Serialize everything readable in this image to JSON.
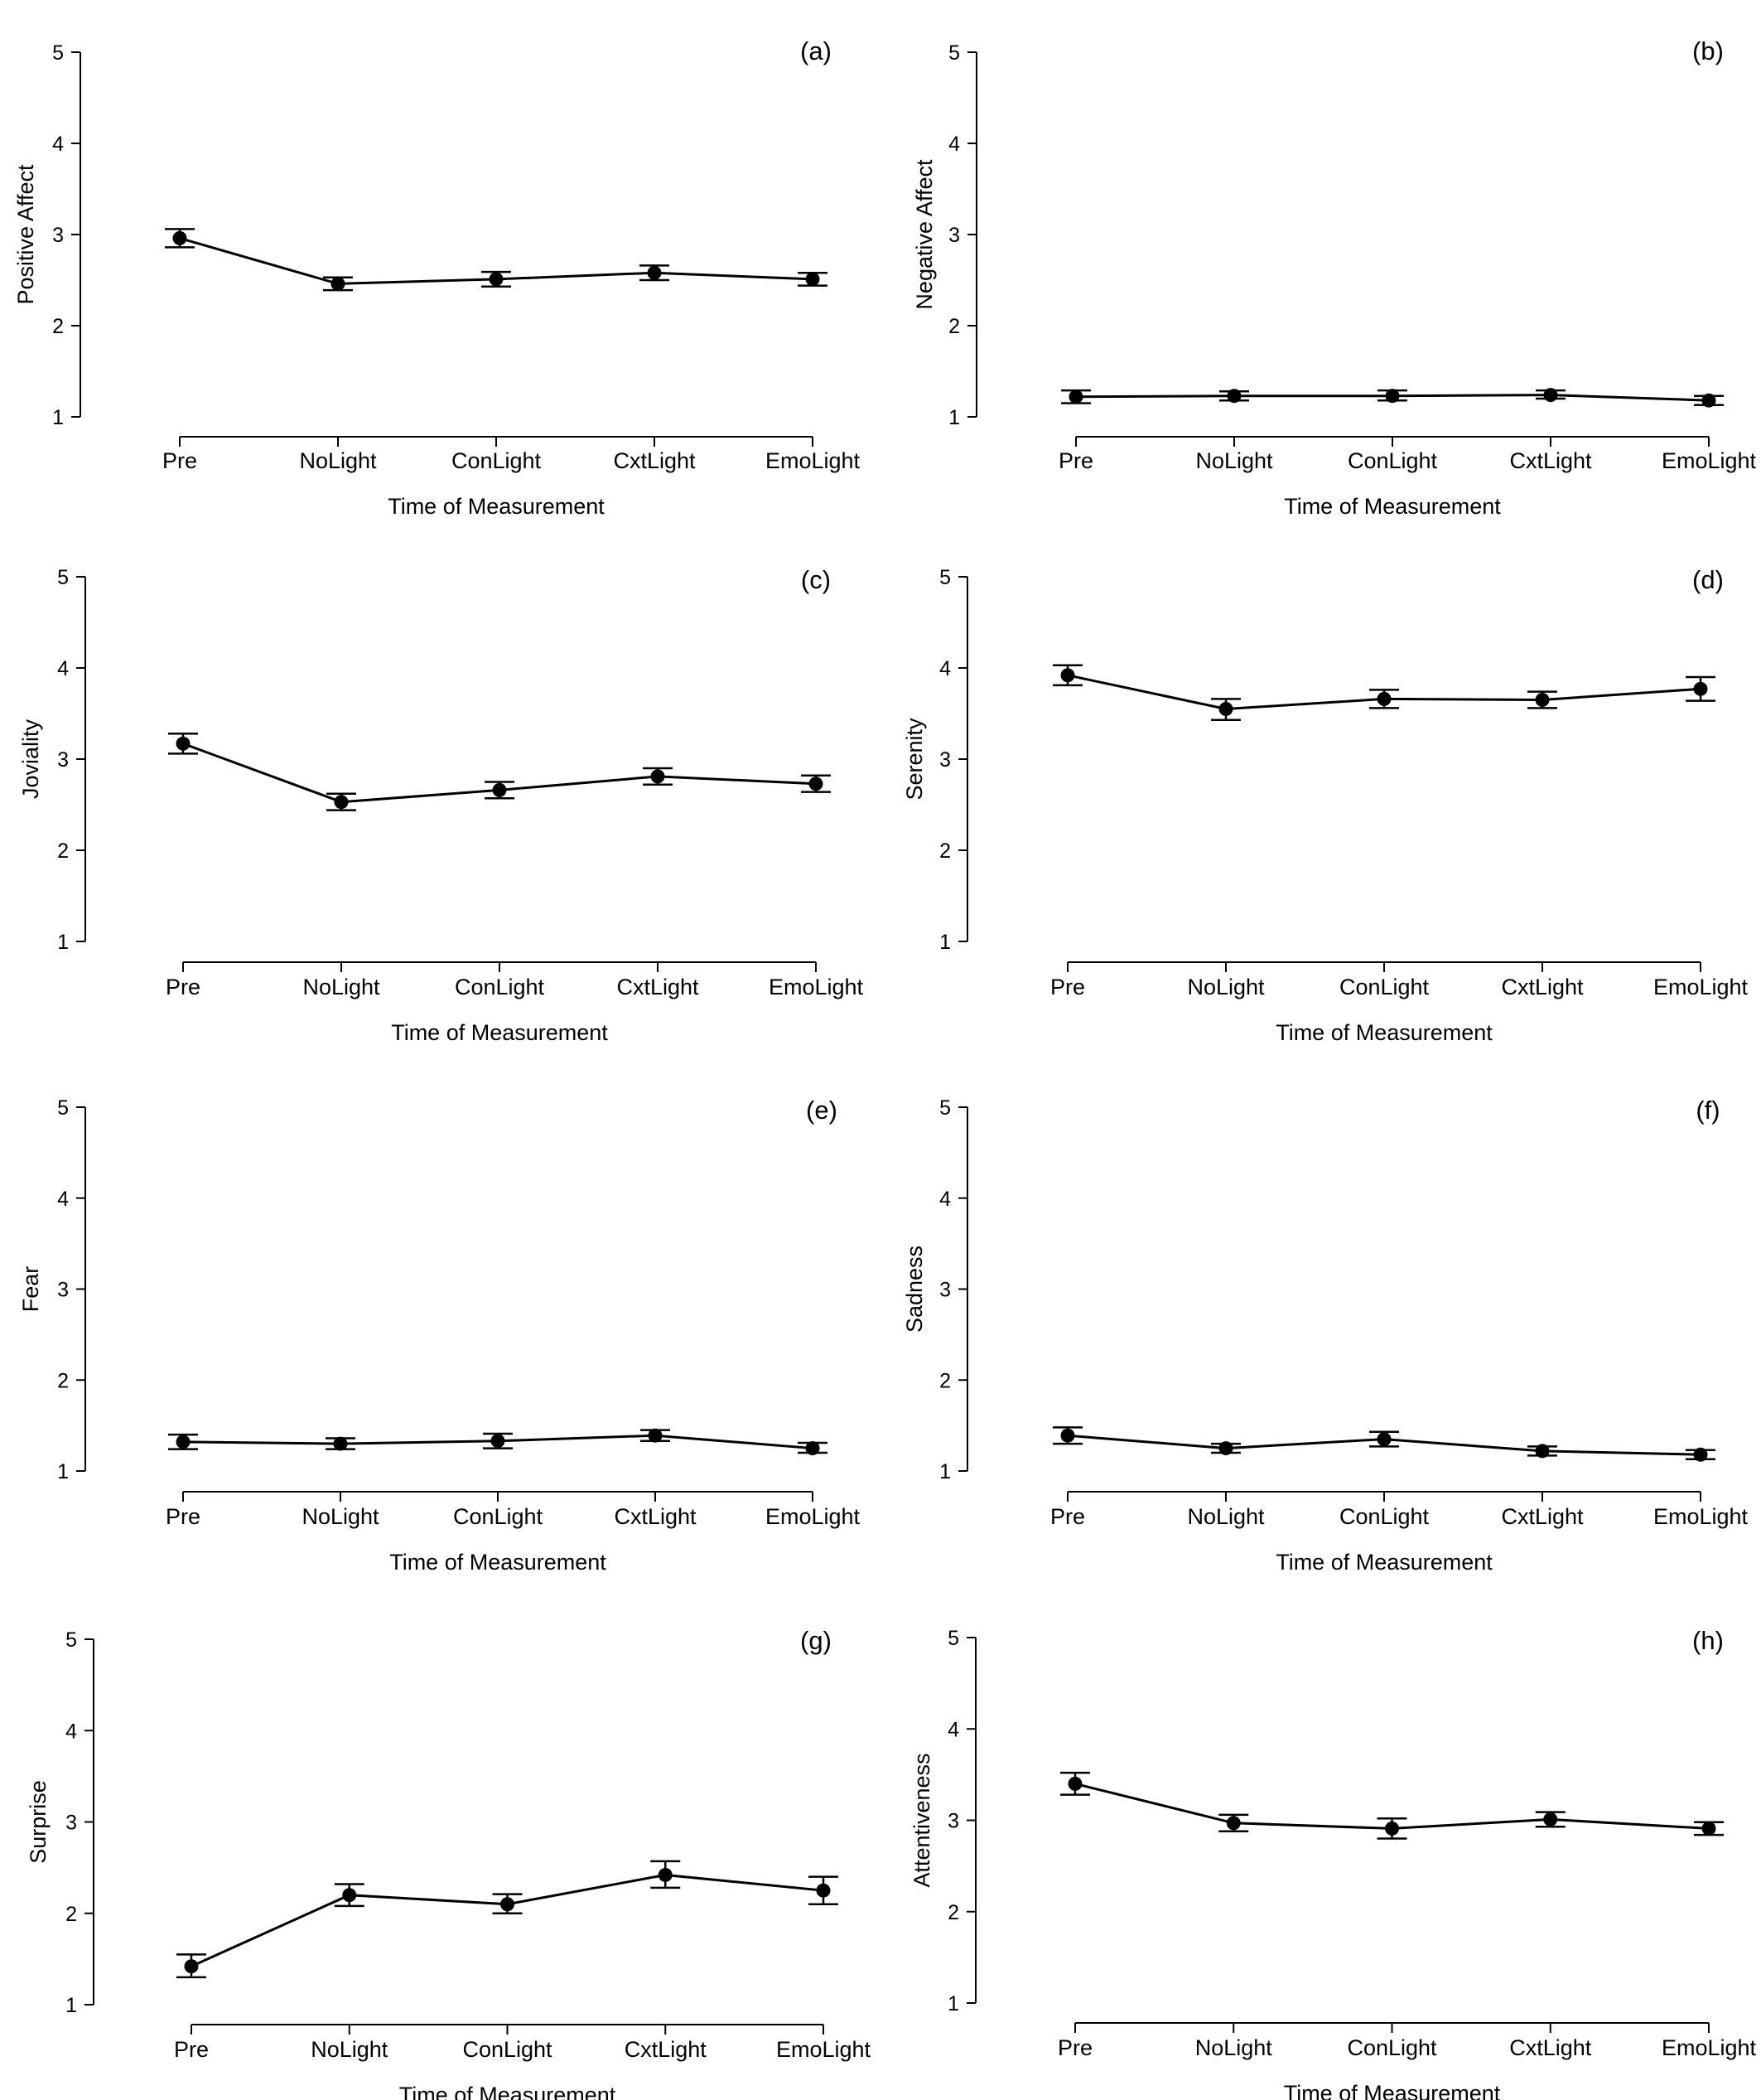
{
  "chart_data": [
    {
      "type": "line",
      "panel_label": "(a)",
      "xlabel": "Time of Measurement",
      "ylabel": "Positive Affect",
      "categories": [
        "Pre",
        "NoLight",
        "ConLight",
        "CxtLight",
        "EmoLight"
      ],
      "yticks": [
        1,
        2,
        3,
        4,
        5
      ],
      "ylim": [
        1,
        5
      ],
      "values": [
        2.96,
        2.46,
        2.51,
        2.58,
        2.51
      ],
      "err_low": [
        2.86,
        2.39,
        2.43,
        2.5,
        2.44
      ],
      "err_high": [
        3.06,
        2.53,
        2.59,
        2.66,
        2.58
      ]
    },
    {
      "type": "line",
      "panel_label": "(b)",
      "xlabel": "Time of Measurement",
      "ylabel": "Negative Affect",
      "categories": [
        "Pre",
        "NoLight",
        "ConLight",
        "CxtLight",
        "EmoLight"
      ],
      "yticks": [
        1,
        2,
        3,
        4,
        5
      ],
      "ylim": [
        1,
        5
      ],
      "values": [
        1.22,
        1.23,
        1.23,
        1.24,
        1.18
      ],
      "err_low": [
        1.15,
        1.18,
        1.18,
        1.2,
        1.13
      ],
      "err_high": [
        1.29,
        1.28,
        1.29,
        1.29,
        1.23
      ]
    },
    {
      "type": "line",
      "panel_label": "(c)",
      "xlabel": "Time of Measurement",
      "ylabel": "Joviality",
      "categories": [
        "Pre",
        "NoLight",
        "ConLight",
        "CxtLight",
        "EmoLight"
      ],
      "yticks": [
        1,
        2,
        3,
        4,
        5
      ],
      "ylim": [
        1,
        5
      ],
      "values": [
        3.17,
        2.53,
        2.66,
        2.81,
        2.73
      ],
      "err_low": [
        3.06,
        2.44,
        2.57,
        2.72,
        2.64
      ],
      "err_high": [
        3.28,
        2.62,
        2.75,
        2.9,
        2.82
      ]
    },
    {
      "type": "line",
      "panel_label": "(d)",
      "xlabel": "Time of Measurement",
      "ylabel": "Serenity",
      "categories": [
        "Pre",
        "NoLight",
        "ConLight",
        "CxtLight",
        "EmoLight"
      ],
      "yticks": [
        1,
        2,
        3,
        4,
        5
      ],
      "ylim": [
        1,
        5
      ],
      "values": [
        3.92,
        3.55,
        3.66,
        3.65,
        3.77
      ],
      "err_low": [
        3.81,
        3.43,
        3.56,
        3.56,
        3.64
      ],
      "err_high": [
        4.03,
        3.66,
        3.76,
        3.74,
        3.9
      ]
    },
    {
      "type": "line",
      "panel_label": "(e)",
      "xlabel": "Time of Measurement",
      "ylabel": "Fear",
      "categories": [
        "Pre",
        "NoLight",
        "ConLight",
        "CxtLight",
        "EmoLight"
      ],
      "yticks": [
        1,
        2,
        3,
        4,
        5
      ],
      "ylim": [
        1,
        5
      ],
      "values": [
        1.32,
        1.3,
        1.33,
        1.39,
        1.25
      ],
      "err_low": [
        1.24,
        1.24,
        1.25,
        1.33,
        1.2
      ],
      "err_high": [
        1.4,
        1.36,
        1.41,
        1.45,
        1.31
      ]
    },
    {
      "type": "line",
      "panel_label": "(f)",
      "xlabel": "Time of Measurement",
      "ylabel": "Sadness",
      "categories": [
        "Pre",
        "NoLight",
        "ConLight",
        "CxtLight",
        "EmoLight"
      ],
      "yticks": [
        1,
        2,
        3,
        4,
        5
      ],
      "ylim": [
        1,
        5
      ],
      "values": [
        1.39,
        1.25,
        1.35,
        1.22,
        1.18
      ],
      "err_low": [
        1.3,
        1.2,
        1.27,
        1.17,
        1.13
      ],
      "err_high": [
        1.48,
        1.3,
        1.43,
        1.27,
        1.23
      ]
    },
    {
      "type": "line",
      "panel_label": "(g)",
      "xlabel": "Time of Measurement",
      "ylabel": "Surprise",
      "categories": [
        "Pre",
        "NoLight",
        "ConLight",
        "CxtLight",
        "EmoLight"
      ],
      "yticks": [
        1,
        2,
        3,
        4,
        5
      ],
      "ylim": [
        1,
        5
      ],
      "values": [
        1.42,
        2.2,
        2.1,
        2.42,
        2.25
      ],
      "err_low": [
        1.3,
        2.08,
        2.0,
        2.28,
        2.1
      ],
      "err_high": [
        1.55,
        2.32,
        2.21,
        2.57,
        2.4
      ]
    },
    {
      "type": "line",
      "panel_label": "(h)",
      "xlabel": "Time of Measurement",
      "ylabel": "Attentiveness",
      "categories": [
        "Pre",
        "NoLight",
        "ConLight",
        "CxtLight",
        "EmoLight"
      ],
      "yticks": [
        1,
        2,
        3,
        4,
        5
      ],
      "ylim": [
        1,
        5
      ],
      "values": [
        3.4,
        2.97,
        2.91,
        3.01,
        2.91
      ],
      "err_low": [
        3.28,
        2.88,
        2.8,
        2.93,
        2.84
      ],
      "err_high": [
        3.52,
        3.06,
        3.02,
        3.09,
        2.98
      ]
    }
  ]
}
